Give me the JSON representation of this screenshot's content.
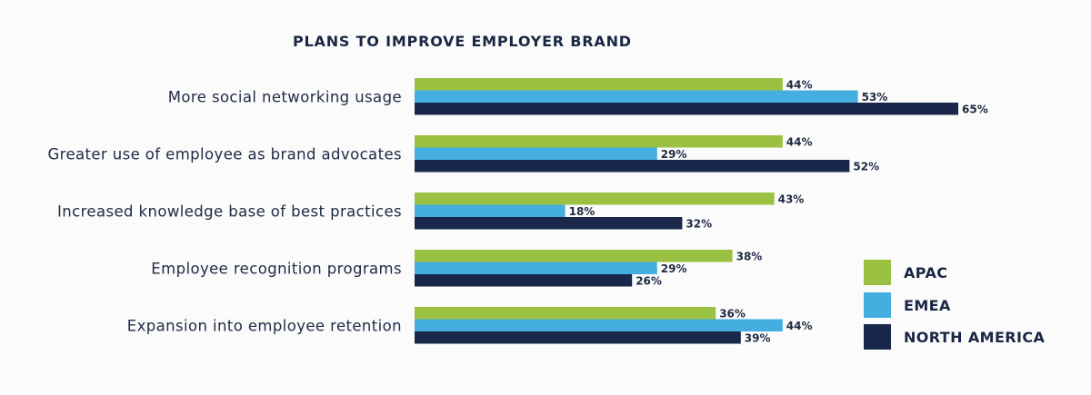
{
  "colors": {
    "APAC": "#9bc143",
    "EMEA": "#45aee0",
    "NORTH AMERICA": "#19284a"
  },
  "chart_data": {
    "type": "bar",
    "orientation": "horizontal",
    "title": "PLANS TO IMPROVE EMPLOYER BRAND",
    "categories": [
      "More social networking usage",
      "Greater use of employee as brand advocates",
      "Increased knowledge base of best practices",
      "Employee recognition programs",
      "Expansion into employee retention"
    ],
    "series": [
      {
        "name": "APAC",
        "values": [
          44,
          44,
          43,
          38,
          36
        ],
        "labels": [
          "44%",
          "44%",
          "43%",
          "38%",
          "36%"
        ]
      },
      {
        "name": "EMEA",
        "values": [
          53,
          29,
          18,
          29,
          44
        ],
        "labels": [
          "53%",
          "29%",
          "18%",
          "29%",
          "44%"
        ]
      },
      {
        "name": "NORTH AMERICA",
        "values": [
          65,
          52,
          32,
          26,
          39
        ],
        "labels": [
          "65%",
          "52%",
          "32%",
          "26%",
          "39%"
        ]
      }
    ],
    "legend": {
      "position": "bottom-right",
      "items": [
        "APAC",
        "EMEA",
        "NORTH AMERICA"
      ]
    },
    "grid": false
  }
}
